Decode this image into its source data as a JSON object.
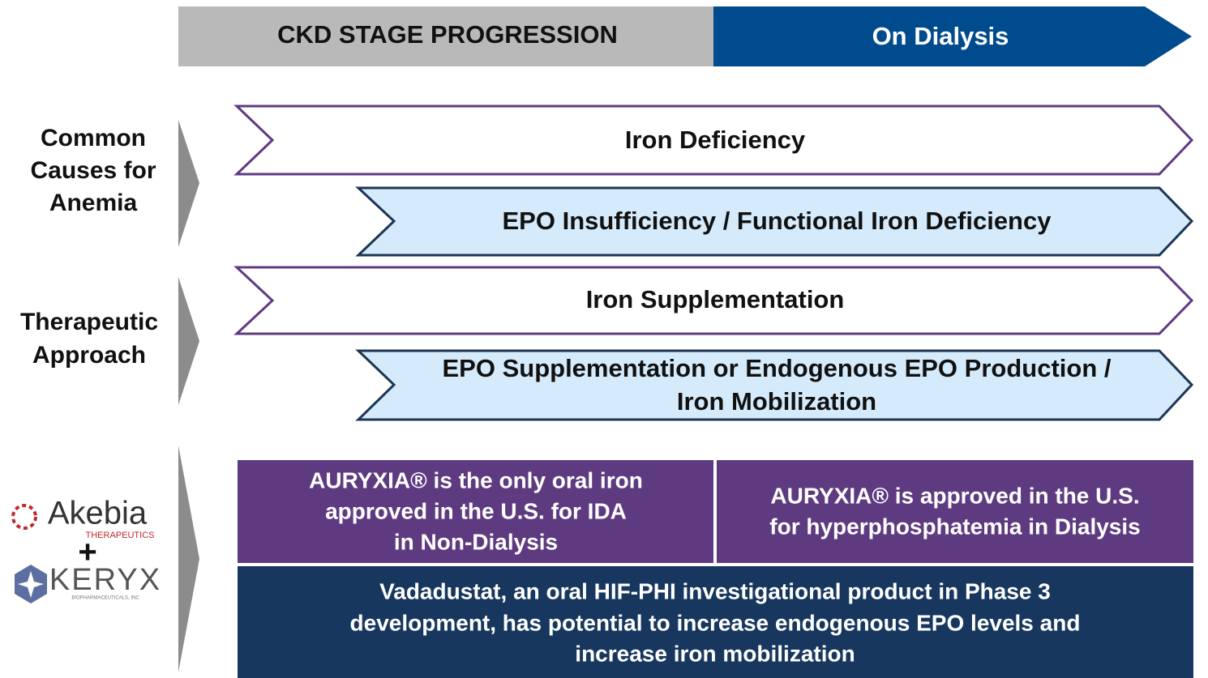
{
  "header": {
    "left": "CKD STAGE PROGRESSION",
    "right": "On Dialysis"
  },
  "sections": [
    {
      "label": [
        "Common",
        "Causes for",
        "Anemia"
      ],
      "arrows": [
        {
          "text": [
            "Iron Deficiency"
          ]
        },
        {
          "text": [
            "EPO Insufficiency / Functional Iron Deficiency"
          ]
        }
      ]
    },
    {
      "label": [
        "Therapeutic",
        "Approach"
      ],
      "arrows": [
        {
          "text": [
            "Iron Supplementation"
          ]
        },
        {
          "text": [
            "EPO Supplementation or Endogenous EPO Production /",
            "Iron Mobilization"
          ]
        }
      ]
    }
  ],
  "logos": {
    "akebia": "Akebia",
    "akebia_sub": "THERAPEUTICS",
    "plus": "+",
    "keryx": "KERYX",
    "keryx_sub": "BIOPHARMACEUTICALS, INC"
  },
  "boxes": {
    "left": [
      "AURYXIA® is the only oral iron",
      "approved in the U.S. for IDA",
      "in Non-Dialysis"
    ],
    "right": [
      "AURYXIA® is approved in the U.S.",
      "for hyperphosphatemia in Dialysis"
    ],
    "bottom": [
      "Vadadustat, an oral HIF-PHI investigational product in Phase 3",
      "development, has potential to increase endogenous EPO levels and",
      "increase iron mobilization"
    ]
  }
}
